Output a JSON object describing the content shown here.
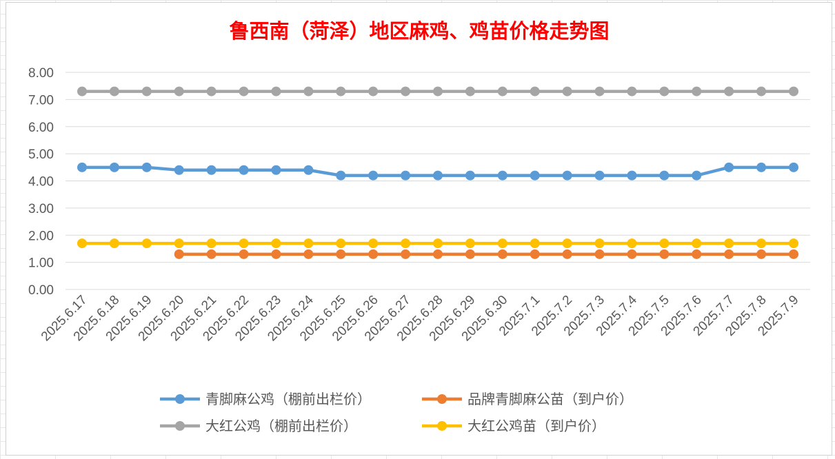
{
  "chart_data": {
    "type": "line",
    "title": "鲁西南（菏泽）地区麻鸡、鸡苗价格走势图",
    "xlabel": "",
    "ylabel": "",
    "ylim": [
      0,
      8
    ],
    "y_ticks": [
      "0.00",
      "1.00",
      "2.00",
      "3.00",
      "4.00",
      "5.00",
      "6.00",
      "7.00",
      "8.00"
    ],
    "grid": true,
    "legend_position": "bottom",
    "categories": [
      "2025.6.17",
      "2025.6.18",
      "2025.6.19",
      "2025.6.20",
      "2025.6.21",
      "2025.6.22",
      "2025.6.23",
      "2025.6.24",
      "2025.6.25",
      "2025.6.26",
      "2025.6.27",
      "2025.6.28",
      "2025.6.29",
      "2025.6.30",
      "2025.7.1",
      "2025.7.2",
      "2025.7.3",
      "2025.7.4",
      "2025.7.5",
      "2025.7.6",
      "2025.7.7",
      "2025.7.8",
      "2025.7.9"
    ],
    "series": [
      {
        "name": "青脚麻公鸡（棚前出栏价）",
        "color": "#5b9bd5",
        "values": [
          4.5,
          4.5,
          4.5,
          4.4,
          4.4,
          4.4,
          4.4,
          4.4,
          4.2,
          4.2,
          4.2,
          4.2,
          4.2,
          4.2,
          4.2,
          4.2,
          4.2,
          4.2,
          4.2,
          4.2,
          4.5,
          4.5,
          4.5
        ]
      },
      {
        "name": "品牌青脚麻公苗（到户价）",
        "color": "#ed7d31",
        "values": [
          null,
          null,
          null,
          1.3,
          1.3,
          1.3,
          1.3,
          1.3,
          1.3,
          1.3,
          1.3,
          1.3,
          1.3,
          1.3,
          1.3,
          1.3,
          1.3,
          1.3,
          1.3,
          1.3,
          1.3,
          1.3,
          1.3
        ]
      },
      {
        "name": "大红公鸡（棚前出栏价）",
        "color": "#a5a5a5",
        "values": [
          7.3,
          7.3,
          7.3,
          7.3,
          7.3,
          7.3,
          7.3,
          7.3,
          7.3,
          7.3,
          7.3,
          7.3,
          7.3,
          7.3,
          7.3,
          7.3,
          7.3,
          7.3,
          7.3,
          7.3,
          7.3,
          7.3,
          7.3
        ]
      },
      {
        "name": "大红公鸡苗（到户价）",
        "color": "#ffc000",
        "values": [
          1.7,
          1.7,
          1.7,
          1.7,
          1.7,
          1.7,
          1.7,
          1.7,
          1.7,
          1.7,
          1.7,
          1.7,
          1.7,
          1.7,
          1.7,
          1.7,
          1.7,
          1.7,
          1.7,
          1.7,
          1.7,
          1.7,
          1.7
        ]
      }
    ],
    "colors": {
      "title": "#ff0000",
      "grid": "#d9d9d9",
      "axis_text": "#595959"
    }
  }
}
